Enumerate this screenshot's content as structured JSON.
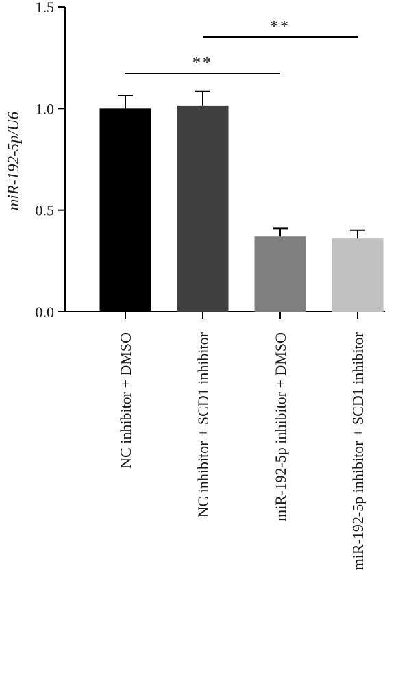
{
  "chart_data": {
    "type": "bar",
    "title": "",
    "xlabel": "",
    "ylabel": "miR-192-5p/U6",
    "ylim": [
      0,
      1.5
    ],
    "yticks": [
      0.0,
      0.5,
      1.0,
      1.5
    ],
    "ytick_labels": [
      "0.0",
      "0.5",
      "1.0",
      "1.5"
    ],
    "categories": [
      "NC inhibitor + DMSO",
      "NC inhibitor + SCD1 inhibitor",
      "miR-192-5p inhibitor + DMSO",
      "miR-192-5p inhibitor + SCD1 inhibitor"
    ],
    "values": [
      1.0,
      1.015,
      0.37,
      0.36
    ],
    "errors": [
      0.065,
      0.068,
      0.04,
      0.042
    ],
    "bar_colors": [
      "#000000",
      "#404040",
      "#808080",
      "#c0c0c0"
    ],
    "grid": false,
    "legend": "none",
    "significance": [
      {
        "from": 0,
        "to": 2,
        "label": "**"
      },
      {
        "from": 1,
        "to": 3,
        "label": "**"
      }
    ]
  }
}
